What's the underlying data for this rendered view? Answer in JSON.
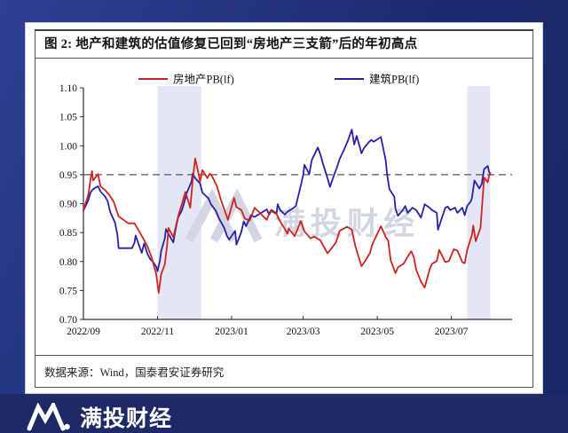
{
  "page": {
    "background": "#1c2a6e",
    "bottom_bar_color": "#1d2a66",
    "card_color": "#ffffff"
  },
  "figure": {
    "title": "图 2:  地产和建筑的估值修复已回到“房地产三支箭”后的年初高点",
    "source": "数据来源：Wind，国泰君安证券研究"
  },
  "brand": {
    "logo_text": "满投财经",
    "watermark_text": "满投财经"
  },
  "chart_data": {
    "type": "line",
    "title": "",
    "xlabel": "",
    "ylabel": "",
    "grid": false,
    "legend_position": "top",
    "x_domain": [
      "2022-09-01",
      "2023-08-20"
    ],
    "ylim": [
      0.7,
      1.1
    ],
    "ytick_values": [
      1.1,
      1.05,
      1.0,
      0.95,
      0.9,
      0.85,
      0.8,
      0.75,
      0.7
    ],
    "ytick_labels": [
      "1.10",
      "1.05",
      "1.00",
      "0.95",
      "0.90",
      "0.85",
      "0.80",
      "0.75",
      "0.70"
    ],
    "xticks": [
      {
        "label": "2022/09",
        "date": "2022-09-01"
      },
      {
        "label": "2022/11",
        "date": "2022-11-01"
      },
      {
        "label": "2023/01",
        "date": "2023-01-01"
      },
      {
        "label": "2023/03",
        "date": "2023-03-01"
      },
      {
        "label": "2023/05",
        "date": "2023-05-01"
      },
      {
        "label": "2023/07",
        "date": "2023-07-01"
      }
    ],
    "reference_line": {
      "value": 0.95,
      "style": "dashed",
      "color": "#555555"
    },
    "highlight_bands": [
      {
        "from": "2022-11-01",
        "to": "2022-12-07"
      },
      {
        "from": "2023-07-14",
        "to": "2023-08-02"
      }
    ],
    "band_color": "#e3e6f4",
    "watermark_color": "#d2d6e2",
    "series": [
      {
        "name": "房地产PB(lf)",
        "color": "#d0231f",
        "points": [
          [
            "2022-09-01",
            0.89
          ],
          [
            "2022-09-05",
            0.915
          ],
          [
            "2022-09-07",
            0.944
          ],
          [
            "2022-09-08",
            0.956
          ],
          [
            "2022-09-09",
            0.94
          ],
          [
            "2022-09-13",
            0.951
          ],
          [
            "2022-09-15",
            0.93
          ],
          [
            "2022-09-19",
            0.923
          ],
          [
            "2022-09-22",
            0.916
          ],
          [
            "2022-09-26",
            0.903
          ],
          [
            "2022-09-28",
            0.89
          ],
          [
            "2022-09-30",
            0.878
          ],
          [
            "2022-10-08",
            0.866
          ],
          [
            "2022-10-13",
            0.866
          ],
          [
            "2022-10-17",
            0.852
          ],
          [
            "2022-10-20",
            0.841
          ],
          [
            "2022-10-24",
            0.825
          ],
          [
            "2022-10-27",
            0.808
          ],
          [
            "2022-10-31",
            0.778
          ],
          [
            "2022-11-02",
            0.746
          ],
          [
            "2022-11-04",
            0.778
          ],
          [
            "2022-11-07",
            0.795
          ],
          [
            "2022-11-09",
            0.83
          ],
          [
            "2022-11-10",
            0.858
          ],
          [
            "2022-11-14",
            0.842
          ],
          [
            "2022-11-16",
            0.86
          ],
          [
            "2022-11-18",
            0.878
          ],
          [
            "2022-11-22",
            0.906
          ],
          [
            "2022-11-24",
            0.92
          ],
          [
            "2022-11-28",
            0.893
          ],
          [
            "2022-11-30",
            0.94
          ],
          [
            "2022-12-02",
            0.978
          ],
          [
            "2022-12-05",
            0.95
          ],
          [
            "2022-12-06",
            0.938
          ],
          [
            "2022-12-08",
            0.958
          ],
          [
            "2022-12-12",
            0.944
          ],
          [
            "2022-12-14",
            0.952
          ],
          [
            "2022-12-16",
            0.947
          ],
          [
            "2022-12-20",
            0.93
          ],
          [
            "2022-12-23",
            0.908
          ],
          [
            "2022-12-27",
            0.884
          ],
          [
            "2022-12-29",
            0.872
          ],
          [
            "2023-01-03",
            0.91
          ],
          [
            "2023-01-05",
            0.894
          ],
          [
            "2023-01-09",
            0.889
          ],
          [
            "2023-01-12",
            0.874
          ],
          [
            "2023-01-16",
            0.871
          ],
          [
            "2023-01-20",
            0.893
          ],
          [
            "2023-01-30",
            0.872
          ],
          [
            "2023-02-02",
            0.888
          ],
          [
            "2023-02-07",
            0.882
          ],
          [
            "2023-02-10",
            0.869
          ],
          [
            "2023-02-14",
            0.856
          ],
          [
            "2023-02-16",
            0.848
          ],
          [
            "2023-02-17",
            0.857
          ],
          [
            "2023-02-22",
            0.844
          ],
          [
            "2023-02-27",
            0.87
          ],
          [
            "2023-03-02",
            0.852
          ],
          [
            "2023-03-07",
            0.84
          ],
          [
            "2023-03-10",
            0.843
          ],
          [
            "2023-03-15",
            0.837
          ],
          [
            "2023-03-21",
            0.814
          ],
          [
            "2023-03-24",
            0.822
          ],
          [
            "2023-03-28",
            0.833
          ],
          [
            "2023-03-31",
            0.853
          ],
          [
            "2023-04-06",
            0.86
          ],
          [
            "2023-04-10",
            0.855
          ],
          [
            "2023-04-13",
            0.826
          ],
          [
            "2023-04-18",
            0.792
          ],
          [
            "2023-04-20",
            0.798
          ],
          [
            "2023-04-25",
            0.815
          ],
          [
            "2023-04-27",
            0.83
          ],
          [
            "2023-05-04",
            0.861
          ],
          [
            "2023-05-08",
            0.842
          ],
          [
            "2023-05-10",
            0.836
          ],
          [
            "2023-05-12",
            0.802
          ],
          [
            "2023-05-16",
            0.78
          ],
          [
            "2023-05-18",
            0.79
          ],
          [
            "2023-05-23",
            0.797
          ],
          [
            "2023-05-25",
            0.805
          ],
          [
            "2023-05-29",
            0.818
          ],
          [
            "2023-05-31",
            0.808
          ],
          [
            "2023-06-02",
            0.786
          ],
          [
            "2023-06-06",
            0.765
          ],
          [
            "2023-06-09",
            0.755
          ],
          [
            "2023-06-13",
            0.786
          ],
          [
            "2023-06-15",
            0.796
          ],
          [
            "2023-06-19",
            0.801
          ],
          [
            "2023-06-21",
            0.82
          ],
          [
            "2023-06-26",
            0.799
          ],
          [
            "2023-06-29",
            0.801
          ],
          [
            "2023-07-03",
            0.821
          ],
          [
            "2023-07-06",
            0.819
          ],
          [
            "2023-07-10",
            0.799
          ],
          [
            "2023-07-12",
            0.797
          ],
          [
            "2023-07-14",
            0.82
          ],
          [
            "2023-07-18",
            0.846
          ],
          [
            "2023-07-19",
            0.862
          ],
          [
            "2023-07-21",
            0.835
          ],
          [
            "2023-07-25",
            0.858
          ],
          [
            "2023-07-28",
            0.945
          ],
          [
            "2023-07-31",
            0.937
          ],
          [
            "2023-08-01",
            0.948
          ],
          [
            "2023-08-02",
            0.953
          ]
        ]
      },
      {
        "name": "建筑PB(lf)",
        "color": "#2721aa",
        "points": [
          [
            "2022-09-01",
            0.888
          ],
          [
            "2022-09-05",
            0.906
          ],
          [
            "2022-09-07",
            0.92
          ],
          [
            "2022-09-09",
            0.925
          ],
          [
            "2022-09-13",
            0.93
          ],
          [
            "2022-09-15",
            0.921
          ],
          [
            "2022-09-19",
            0.912
          ],
          [
            "2022-09-21",
            0.904
          ],
          [
            "2022-09-23",
            0.886
          ],
          [
            "2022-09-27",
            0.867
          ],
          [
            "2022-09-29",
            0.846
          ],
          [
            "2022-09-30",
            0.823
          ],
          [
            "2022-10-11",
            0.823
          ],
          [
            "2022-10-13",
            0.832
          ],
          [
            "2022-10-14",
            0.845
          ],
          [
            "2022-10-17",
            0.827
          ],
          [
            "2022-10-19",
            0.815
          ],
          [
            "2022-10-21",
            0.831
          ],
          [
            "2022-10-24",
            0.812
          ],
          [
            "2022-10-26",
            0.804
          ],
          [
            "2022-10-28",
            0.8
          ],
          [
            "2022-10-31",
            0.791
          ],
          [
            "2022-11-01",
            0.783
          ],
          [
            "2022-11-03",
            0.802
          ],
          [
            "2022-11-04",
            0.818
          ],
          [
            "2022-11-07",
            0.84
          ],
          [
            "2022-11-08",
            0.856
          ],
          [
            "2022-11-11",
            0.844
          ],
          [
            "2022-11-14",
            0.833
          ],
          [
            "2022-11-16",
            0.857
          ],
          [
            "2022-11-18",
            0.876
          ],
          [
            "2022-11-21",
            0.888
          ],
          [
            "2022-11-23",
            0.902
          ],
          [
            "2022-11-25",
            0.918
          ],
          [
            "2022-11-29",
            0.938
          ],
          [
            "2022-11-30",
            0.952
          ],
          [
            "2022-12-02",
            0.944
          ],
          [
            "2022-12-06",
            0.935
          ],
          [
            "2022-12-08",
            0.919
          ],
          [
            "2022-12-13",
            0.909
          ],
          [
            "2022-12-15",
            0.899
          ],
          [
            "2022-12-19",
            0.888
          ],
          [
            "2022-12-22",
            0.873
          ],
          [
            "2022-12-26",
            0.858
          ],
          [
            "2022-12-28",
            0.845
          ],
          [
            "2022-12-30",
            0.838
          ],
          [
            "2023-01-04",
            0.853
          ],
          [
            "2023-01-05",
            0.829
          ],
          [
            "2023-01-09",
            0.851
          ],
          [
            "2023-01-11",
            0.869
          ],
          [
            "2023-01-13",
            0.861
          ],
          [
            "2023-01-17",
            0.88
          ],
          [
            "2023-01-20",
            0.877
          ],
          [
            "2023-01-30",
            0.89
          ],
          [
            "2023-02-01",
            0.881
          ],
          [
            "2023-02-03",
            0.889
          ],
          [
            "2023-02-07",
            0.883
          ],
          [
            "2023-02-08",
            0.899
          ],
          [
            "2023-02-10",
            0.889
          ],
          [
            "2023-02-14",
            0.881
          ],
          [
            "2023-02-16",
            0.886
          ],
          [
            "2023-02-20",
            0.891
          ],
          [
            "2023-02-23",
            0.896
          ],
          [
            "2023-02-27",
            0.931
          ],
          [
            "2023-03-01",
            0.95
          ],
          [
            "2023-03-02",
            0.967
          ],
          [
            "2023-03-06",
            0.951
          ],
          [
            "2023-03-08",
            0.975
          ],
          [
            "2023-03-13",
            0.997
          ],
          [
            "2023-03-15",
            0.986
          ],
          [
            "2023-03-17",
            0.971
          ],
          [
            "2023-03-21",
            0.944
          ],
          [
            "2023-03-23",
            0.929
          ],
          [
            "2023-03-27",
            0.953
          ],
          [
            "2023-03-29",
            0.964
          ],
          [
            "2023-03-31",
            0.977
          ],
          [
            "2023-04-04",
            0.995
          ],
          [
            "2023-04-07",
            1.01
          ],
          [
            "2023-04-10",
            1.028
          ],
          [
            "2023-04-12",
            1.002
          ],
          [
            "2023-04-14",
            1.017
          ],
          [
            "2023-04-18",
            0.987
          ],
          [
            "2023-04-20",
            0.996
          ],
          [
            "2023-04-24",
            1.006
          ],
          [
            "2023-04-26",
            1.01
          ],
          [
            "2023-04-28",
            1.007
          ],
          [
            "2023-05-04",
            1.015
          ],
          [
            "2023-05-08",
            0.974
          ],
          [
            "2023-05-09",
            0.951
          ],
          [
            "2023-05-11",
            0.925
          ],
          [
            "2023-05-15",
            0.912
          ],
          [
            "2023-05-16",
            0.891
          ],
          [
            "2023-05-18",
            0.879
          ],
          [
            "2023-05-22",
            0.889
          ],
          [
            "2023-05-24",
            0.896
          ],
          [
            "2023-05-26",
            0.884
          ],
          [
            "2023-05-30",
            0.893
          ],
          [
            "2023-06-02",
            0.889
          ],
          [
            "2023-06-06",
            0.876
          ],
          [
            "2023-06-09",
            0.899
          ],
          [
            "2023-06-13",
            0.893
          ],
          [
            "2023-06-15",
            0.889
          ],
          [
            "2023-06-19",
            0.884
          ],
          [
            "2023-06-20",
            0.855
          ],
          [
            "2023-06-26",
            0.893
          ],
          [
            "2023-06-28",
            0.895
          ],
          [
            "2023-06-30",
            0.889
          ],
          [
            "2023-07-04",
            0.893
          ],
          [
            "2023-07-06",
            0.884
          ],
          [
            "2023-07-10",
            0.893
          ],
          [
            "2023-07-12",
            0.88
          ],
          [
            "2023-07-14",
            0.896
          ],
          [
            "2023-07-17",
            0.904
          ],
          [
            "2023-07-18",
            0.91
          ],
          [
            "2023-07-20",
            0.94
          ],
          [
            "2023-07-24",
            0.926
          ],
          [
            "2023-07-26",
            0.934
          ],
          [
            "2023-07-28",
            0.96
          ],
          [
            "2023-07-31",
            0.965
          ],
          [
            "2023-08-01",
            0.955
          ],
          [
            "2023-08-02",
            0.95
          ]
        ]
      }
    ]
  }
}
